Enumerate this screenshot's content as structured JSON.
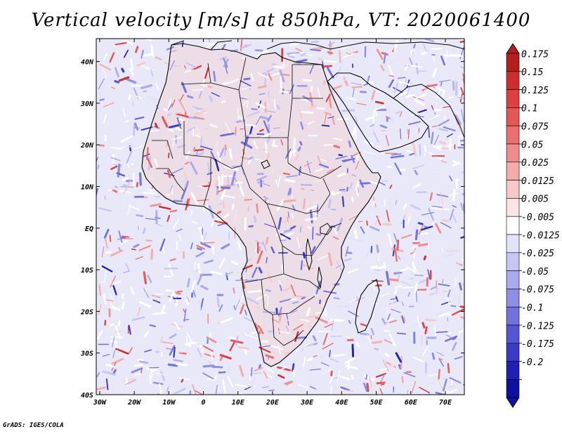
{
  "title": "Vertical velocity [m/s] at 850hPa, VT: 2020061400",
  "credit": "GrADS: IGES/COLA",
  "lon_ticks": [
    "30W",
    "20W",
    "10W",
    "0",
    "10E",
    "20E",
    "30E",
    "40E",
    "50E",
    "60E",
    "70E"
  ],
  "lat_ticks": [
    "40N",
    "30N",
    "20N",
    "10N",
    "EQ",
    "10S",
    "20S",
    "30S",
    "40S"
  ],
  "colorbar": {
    "levels": [
      "0.175",
      "0.15",
      "0.125",
      "0.1",
      "0.075",
      "0.05",
      "0.025",
      "0.0125",
      "0.005",
      "-0.005",
      "-0.0125",
      "-0.025",
      "-0.05",
      "-0.075",
      "-0.1",
      "-0.125",
      "-0.175",
      "-0.2"
    ],
    "colors": [
      "#b41e1e",
      "#cd2d2d",
      "#dc4040",
      "#e45757",
      "#ea7070",
      "#ef8d8d",
      "#f4abab",
      "#f8c8c8",
      "#fce4e4",
      "#ffffff",
      "#e2e2fa",
      "#c6c6f4",
      "#aaaaee",
      "#8e8ee6",
      "#7272de",
      "#5656d4",
      "#3a3ac8",
      "#2020b4",
      "#1010a0"
    ]
  },
  "colors": {
    "ocean_base": "#e8e8f8",
    "land_base": "#ecdde6",
    "coastline": "#000000"
  }
}
